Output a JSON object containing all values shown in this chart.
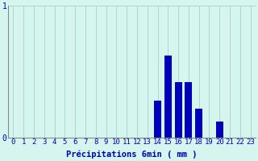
{
  "categories": [
    0,
    1,
    2,
    3,
    4,
    5,
    6,
    7,
    8,
    9,
    10,
    11,
    12,
    13,
    14,
    15,
    16,
    17,
    18,
    19,
    20,
    21,
    22,
    23
  ],
  "values": [
    0,
    0,
    0,
    0,
    0,
    0,
    0,
    0,
    0,
    0,
    0,
    0,
    0,
    0,
    0.28,
    0.62,
    0.42,
    0.42,
    0.22,
    0,
    0.12,
    0,
    0,
    0
  ],
  "bar_color": "#0000bb",
  "bg_color": "#d6f5ef",
  "grid_color": "#aad8d0",
  "axis_color": "#888888",
  "text_color": "#0000bb",
  "xlabel": "Précipitations 6min ( mm )",
  "ylim": [
    0,
    1
  ],
  "yticks": [
    0,
    1
  ],
  "xlim": [
    -0.5,
    23.5
  ],
  "xlabel_fontsize": 7.5,
  "tick_fontsize": 6.5
}
